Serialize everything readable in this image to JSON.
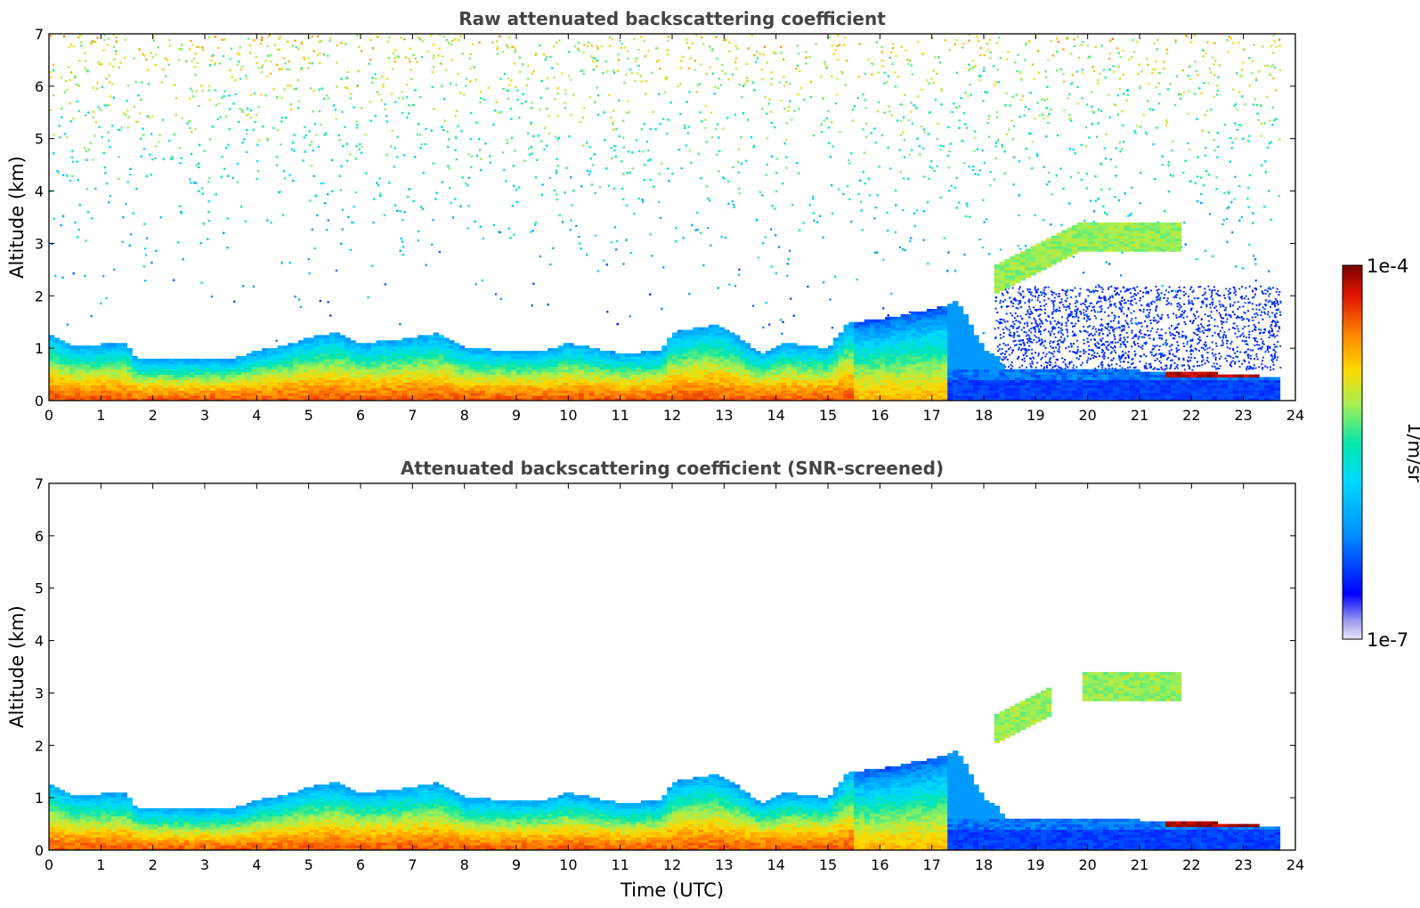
{
  "chart_data": [
    {
      "type": "heatmap",
      "title": "Raw attenuated backscattering coefficient",
      "xlabel": "",
      "ylabel": "Altitude (km)",
      "xlim": [
        0,
        24
      ],
      "ylim": [
        0,
        7
      ],
      "x_ticks": [
        0,
        1,
        2,
        3,
        4,
        5,
        6,
        7,
        8,
        9,
        10,
        11,
        12,
        13,
        14,
        15,
        16,
        17,
        18,
        19,
        20,
        21,
        22,
        23,
        24
      ],
      "y_ticks": [
        0,
        1,
        2,
        3,
        4,
        5,
        6,
        7
      ],
      "data_end_time": 23.7,
      "description_points": [
        {
          "time_utc": 0.5,
          "boundary_layer_top_km": 1.1
        },
        {
          "time_utc": 2.5,
          "boundary_layer_top_km": 0.8
        },
        {
          "time_utc": 5.5,
          "boundary_layer_top_km": 1.3
        },
        {
          "time_utc": 8.5,
          "boundary_layer_top_km": 0.9
        },
        {
          "time_utc": 12.5,
          "boundary_layer_top_km": 1.4
        },
        {
          "time_utc": 14.5,
          "boundary_layer_top_km": 0.9
        },
        {
          "time_utc": 16.5,
          "boundary_layer_top_km": 1.6
        },
        {
          "time_utc": 19.5,
          "boundary_layer_top_km": 0.5
        },
        {
          "time_utc": 23.5,
          "boundary_layer_top_km": 0.4
        }
      ]
    },
    {
      "type": "heatmap",
      "title": "Attenuated backscattering coefficient (SNR-screened)",
      "xlabel": "Time (UTC)",
      "ylabel": "Altitude (km)",
      "xlim": [
        0,
        24
      ],
      "ylim": [
        0,
        7
      ],
      "x_ticks": [
        0,
        1,
        2,
        3,
        4,
        5,
        6,
        7,
        8,
        9,
        10,
        11,
        12,
        13,
        14,
        15,
        16,
        17,
        18,
        19,
        20,
        21,
        22,
        23,
        24
      ],
      "y_ticks": [
        0,
        1,
        2,
        3,
        4,
        5,
        6,
        7
      ],
      "data_end_time": 23.7
    }
  ],
  "colorbar": {
    "label": "1/m/sr",
    "max_label": "1e-4",
    "min_label": "1e-7",
    "scale": "log",
    "colormap": [
      "#e8e8f8",
      "#0000ff",
      "#00b4ff",
      "#00e6c8",
      "#b4f050",
      "#ffd200",
      "#ff7800",
      "#e61400",
      "#780000"
    ]
  }
}
